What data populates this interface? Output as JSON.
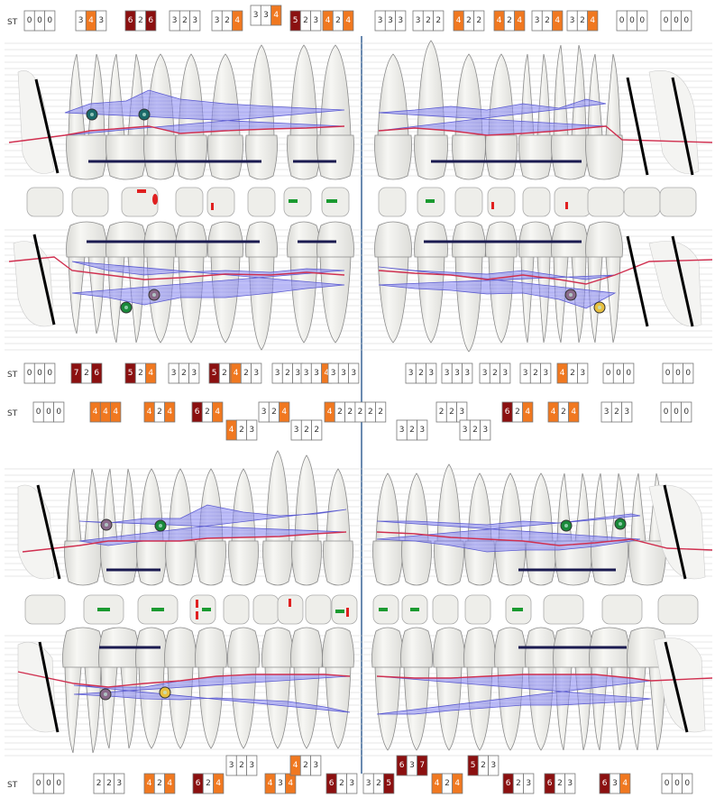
{
  "colors": {
    "normal": "#ffffff",
    "mid": "#f07820",
    "severe": "#8b1010",
    "mid_text": "#ffffff",
    "pocket": "#7d7df0",
    "gingival": "#d03050",
    "tooth": "#f0f0ec",
    "tooth_edge": "#8a8a8a",
    "implant_line": "#1a1a50",
    "green_mark": "#1a9a30",
    "red_mark": "#e02020",
    "furcation_teal": "#1a6a6a",
    "furcation_green": "#1a8a3a",
    "furcation_gray": "#8a6a8a",
    "furcation_yellow": "#e8c040"
  },
  "label_st": "ST",
  "rows": [
    {
      "id": "row-1",
      "groups": [
        {
          "v": [
            "0",
            "0",
            "0"
          ]
        },
        {
          "v": [
            "3",
            "4",
            "3"
          ],
          "s": [
            0,
            1,
            0
          ]
        },
        {
          "v": [
            "6",
            "2",
            "6"
          ],
          "s": [
            2,
            0,
            2
          ]
        },
        {
          "v": [
            "3",
            "2",
            "3"
          ]
        },
        {
          "v": [
            "3",
            "2",
            "4"
          ],
          "s": [
            0,
            0,
            1
          ]
        },
        {
          "v": [
            "3",
            "3",
            "4"
          ],
          "s": [
            0,
            0,
            1
          ],
          "o": -6
        },
        {
          "v": [
            "5",
            "2",
            "3"
          ],
          "s": [
            2,
            0,
            0
          ]
        },
        {
          "v": [
            "4",
            "2",
            "4"
          ],
          "s": [
            1,
            0,
            1
          ]
        },
        {
          "v": [
            "3",
            "3",
            "3"
          ]
        },
        {
          "v": [
            "3",
            "2",
            "2"
          ]
        },
        {
          "v": [
            "4",
            "2",
            "2"
          ],
          "s": [
            1,
            0,
            0
          ]
        },
        {
          "v": [
            "4",
            "2",
            "4"
          ],
          "s": [
            1,
            0,
            1
          ]
        },
        {
          "v": [
            "3",
            "2",
            "4"
          ],
          "s": [
            0,
            0,
            1
          ]
        },
        {
          "v": [
            "3",
            "2",
            "4"
          ],
          "s": [
            0,
            0,
            1
          ]
        },
        {
          "v": [
            "0",
            "0",
            "0"
          ]
        },
        {
          "v": [
            "0",
            "0",
            "0"
          ]
        }
      ]
    },
    {
      "id": "row-2",
      "groups": [
        {
          "v": [
            "0",
            "0",
            "0"
          ]
        },
        {
          "v": [
            "7",
            "2",
            "6"
          ],
          "s": [
            2,
            0,
            2
          ]
        },
        {
          "v": [
            "5",
            "2",
            "4"
          ],
          "s": [
            2,
            0,
            1
          ]
        },
        {
          "v": [
            "3",
            "2",
            "3"
          ]
        },
        {
          "v": [
            "5",
            "2",
            "4"
          ],
          "s": [
            2,
            0,
            1
          ]
        },
        {
          "v": [
            "4",
            "2",
            "3"
          ],
          "s": [
            1,
            0,
            0
          ]
        },
        {
          "v": [
            "3",
            "2",
            "3"
          ]
        },
        {
          "v": [
            "3",
            "3",
            "4"
          ],
          "s": [
            0,
            0,
            1
          ]
        },
        {
          "v": [
            "3",
            "3",
            "3"
          ]
        },
        {
          "v": [
            "3",
            "2",
            "3"
          ]
        },
        {
          "v": [
            "3",
            "3",
            "3"
          ]
        },
        {
          "v": [
            "3",
            "2",
            "3"
          ]
        },
        {
          "v": [
            "3",
            "2",
            "3"
          ]
        },
        {
          "v": [
            "4",
            "2",
            "3"
          ],
          "s": [
            1,
            0,
            0
          ]
        },
        {
          "v": [
            "0",
            "0",
            "0"
          ]
        },
        {
          "v": [
            "0",
            "0",
            "0"
          ]
        }
      ]
    },
    {
      "id": "row-3",
      "groups": [
        {
          "v": [
            "0",
            "0",
            "0"
          ]
        },
        {
          "v": [
            "4",
            "4",
            "4"
          ],
          "s": [
            1,
            1,
            1
          ]
        },
        {
          "v": [
            "4",
            "2",
            "4"
          ],
          "s": [
            1,
            0,
            1
          ]
        },
        {
          "v": [
            "6",
            "2",
            "4"
          ],
          "s": [
            2,
            0,
            1
          ]
        },
        {
          "v": [
            "4",
            "2",
            "3"
          ],
          "s": [
            1,
            0,
            0
          ],
          "o": 20
        },
        {
          "v": [
            "3",
            "2",
            "4"
          ],
          "s": [
            0,
            0,
            1
          ]
        },
        {
          "v": [
            "3",
            "2",
            "2"
          ],
          "o": 20
        },
        {
          "v": [
            "4",
            "2",
            "2",
            "2",
            "2",
            "2"
          ],
          "s": [
            1,
            0,
            0,
            0,
            0,
            0
          ]
        },
        {
          "v": [
            "3",
            "2",
            "3"
          ],
          "o": 20
        },
        {
          "v": [
            "2",
            "2",
            "3"
          ]
        },
        {
          "v": [
            "3",
            "2",
            "3"
          ],
          "o": 20
        },
        {
          "v": [
            "6",
            "2",
            "4"
          ],
          "s": [
            2,
            0,
            1
          ]
        },
        {
          "v": [
            "4",
            "2",
            "4"
          ],
          "s": [
            1,
            0,
            1
          ]
        },
        {
          "v": [
            "3",
            "2",
            "3"
          ]
        },
        {
          "v": [
            "0",
            "0",
            "0"
          ]
        }
      ]
    },
    {
      "id": "row-4",
      "groups": [
        {
          "v": [
            "0",
            "0",
            "0"
          ]
        },
        {
          "v": [
            "2",
            "2",
            "3"
          ]
        },
        {
          "v": [
            "4",
            "2",
            "4"
          ],
          "s": [
            1,
            0,
            1
          ]
        },
        {
          "v": [
            "6",
            "2",
            "4"
          ],
          "s": [
            2,
            0,
            1
          ]
        },
        {
          "v": [
            "3",
            "2",
            "3"
          ],
          "o": -20
        },
        {
          "v": [
            "4",
            "3",
            "4"
          ],
          "s": [
            1,
            0,
            1
          ]
        },
        {
          "v": [
            "4",
            "2",
            "3"
          ],
          "s": [
            1,
            0,
            0
          ],
          "o": -20
        },
        {
          "v": [
            "6",
            "2",
            "3"
          ],
          "s": [
            2,
            0,
            0
          ]
        },
        {
          "v": [
            "3",
            "2",
            "5"
          ],
          "s": [
            0,
            0,
            2
          ]
        },
        {
          "v": [
            "6",
            "3",
            "7"
          ],
          "s": [
            2,
            0,
            2
          ],
          "o": -20
        },
        {
          "v": [
            "4",
            "2",
            "4"
          ],
          "s": [
            1,
            0,
            1
          ]
        },
        {
          "v": [
            "5",
            "2",
            "3"
          ],
          "s": [
            2,
            0,
            0
          ],
          "o": -20
        },
        {
          "v": [
            "6",
            "2",
            "3"
          ],
          "s": [
            2,
            0,
            0
          ]
        },
        {
          "v": [
            "6",
            "2",
            "3"
          ],
          "s": [
            2,
            0,
            0
          ]
        },
        {
          "v": [
            "6",
            "3",
            "4"
          ],
          "s": [
            2,
            0,
            1
          ]
        },
        {
          "v": [
            "0",
            "0",
            "0"
          ]
        }
      ]
    }
  ]
}
